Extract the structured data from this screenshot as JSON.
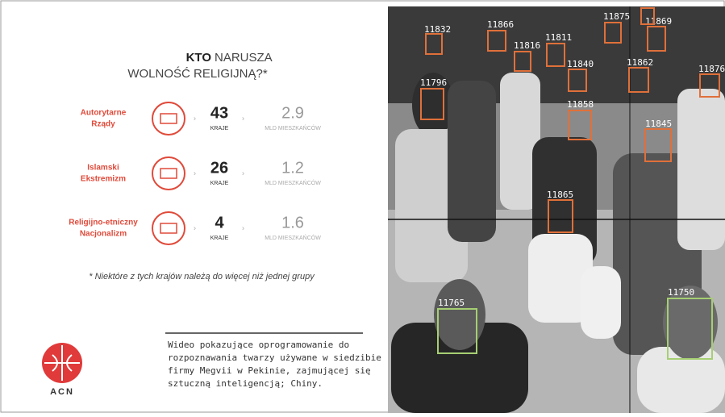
{
  "infographic": {
    "title_bold": "KTO",
    "title_rest": "NARUSZA",
    "title_line2": "WOLNOŚĆ RELIGIJNĄ?*",
    "rows": [
      {
        "name_line1": "Autorytarne",
        "name_line2": "Rządy",
        "countries": "43",
        "countries_unit": "KRAJE",
        "people": "2.9",
        "people_unit": "MLD MIESZKAŃCÓW"
      },
      {
        "name_line1": "Islamski",
        "name_line2": "Ekstremizm",
        "countries": "26",
        "countries_unit": "KRAJE",
        "people": "1.2",
        "people_unit": "MLD MIESZKAŃCÓW"
      },
      {
        "name_line1": "Religijno-etniczny",
        "name_line2": "Nacjonalizm",
        "countries": "4",
        "countries_unit": "KRAJE",
        "people": "1.6",
        "people_unit": "MLD MIESZKAŃCÓW"
      }
    ],
    "footnote": "* Niektóre z tych krajów należą do więcej niż jednej grupy"
  },
  "logo": {
    "text": "ACN"
  },
  "caption": {
    "lines": [
      "Wideo pokazujące oprogramowanie do",
      "rozpoznawania twarzy używane w siedzibie",
      "firmy Megvii w Pekinie, zajmującej się",
      "sztuczną inteligencją; Chiny."
    ]
  },
  "photo": {
    "face_labels": [
      "11832",
      "11866",
      "11816",
      "11811",
      "11875",
      "11869",
      "11796",
      "11840",
      "11862",
      "11876",
      "11858",
      "11845",
      "11865",
      "11765",
      "11750"
    ]
  }
}
